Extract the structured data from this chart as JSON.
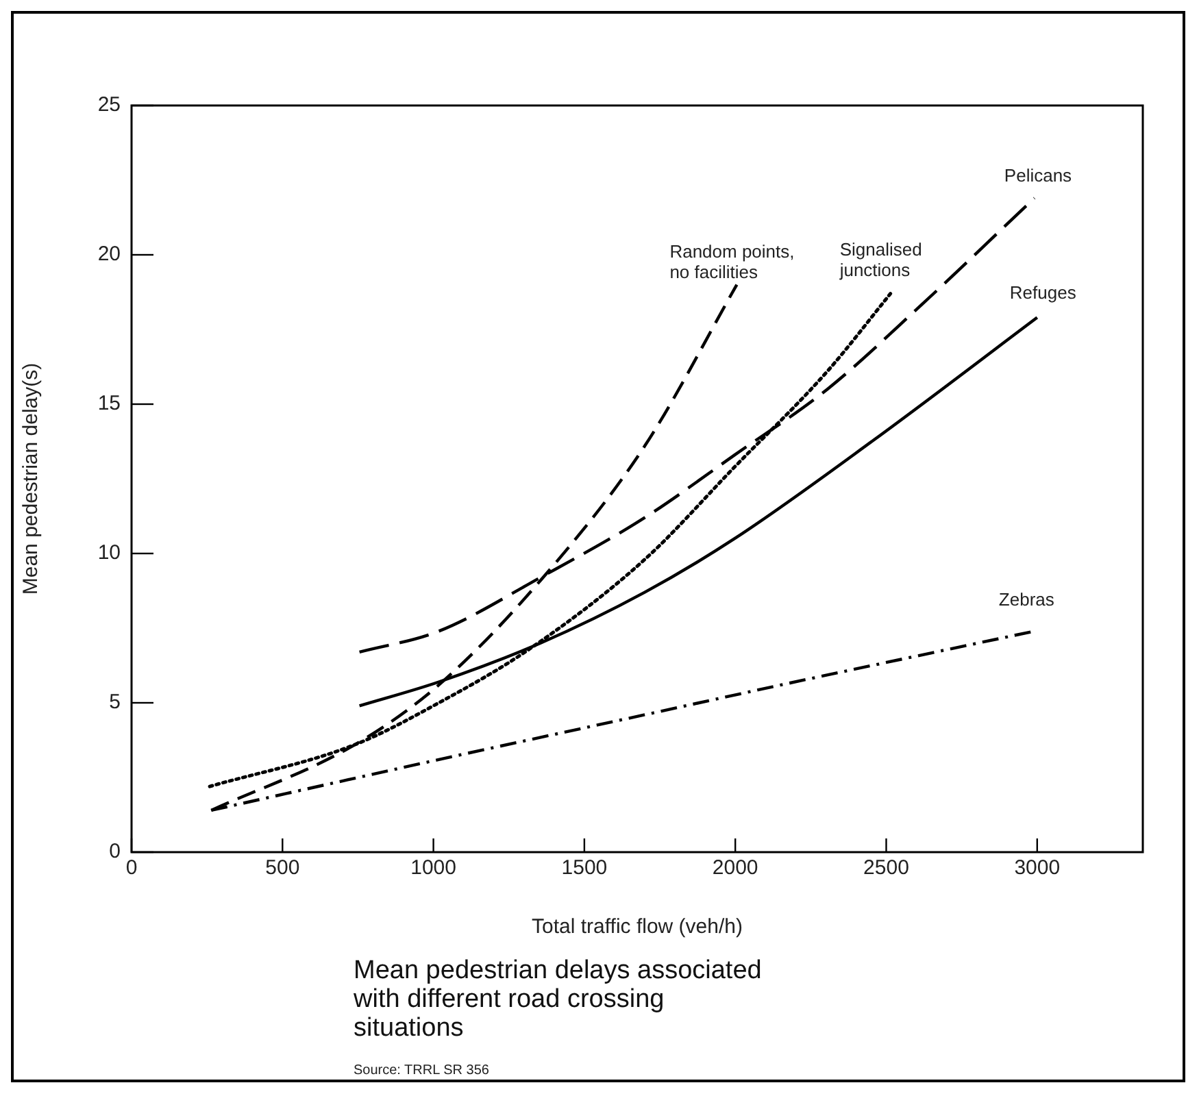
{
  "chart_data": {
    "type": "line",
    "title": "Mean pedestrian delays associated with different road crossing situations",
    "xlabel": "Total traffic flow (veh/h)",
    "ylabel": "Mean pedestrian delay(s)",
    "annotations": [
      "Source: TRRL SR 356"
    ],
    "xlim": [
      0,
      3350
    ],
    "xticks": [
      0,
      500,
      1000,
      1500,
      2000,
      2500,
      3000
    ],
    "ylim": [
      0,
      25
    ],
    "yticks": [
      0,
      5,
      10,
      15,
      20,
      25
    ],
    "grid": false,
    "legend": false,
    "marker": "none",
    "series": [
      {
        "name": "Random points,\nno facilities",
        "color": "#000000",
        "line_style": "dashed",
        "x": [
          264,
          740,
          1018,
          1355,
          1700,
          2005
        ],
        "values": [
          1.4,
          3.6,
          5.6,
          9.1,
          13.6,
          19.0
        ]
      },
      {
        "name": "Signalised\njunctions",
        "color": "#000000",
        "line_style": "dotted",
        "x": [
          259,
          740,
          1018,
          1318,
          1700,
          1998,
          2305,
          2514
        ],
        "values": [
          2.2,
          3.6,
          5.0,
          6.8,
          9.8,
          12.9,
          16.1,
          18.7
        ]
      },
      {
        "name": "Pelicans",
        "color": "#000000",
        "line_style": "dashed",
        "x": [
          755,
          1018,
          1355,
          1700,
          1998,
          2305,
          2614,
          2991
        ],
        "values": [
          6.7,
          7.4,
          9.2,
          11.2,
          13.3,
          15.5,
          18.3,
          21.9
        ]
      },
      {
        "name": "Refuges",
        "color": "#000000",
        "line_style": "solid",
        "x": [
          755,
          1018,
          1355,
          1700,
          1998,
          2459,
          3000
        ],
        "values": [
          4.9,
          5.7,
          7.0,
          8.7,
          10.5,
          13.8,
          17.9
        ]
      },
      {
        "name": "Zebras",
        "color": "#000000",
        "line_style": "dashdot",
        "x": [
          264,
          1018,
          1700,
          2152,
          2991
        ],
        "values": [
          1.4,
          3.1,
          4.6,
          5.6,
          7.4
        ]
      }
    ]
  }
}
